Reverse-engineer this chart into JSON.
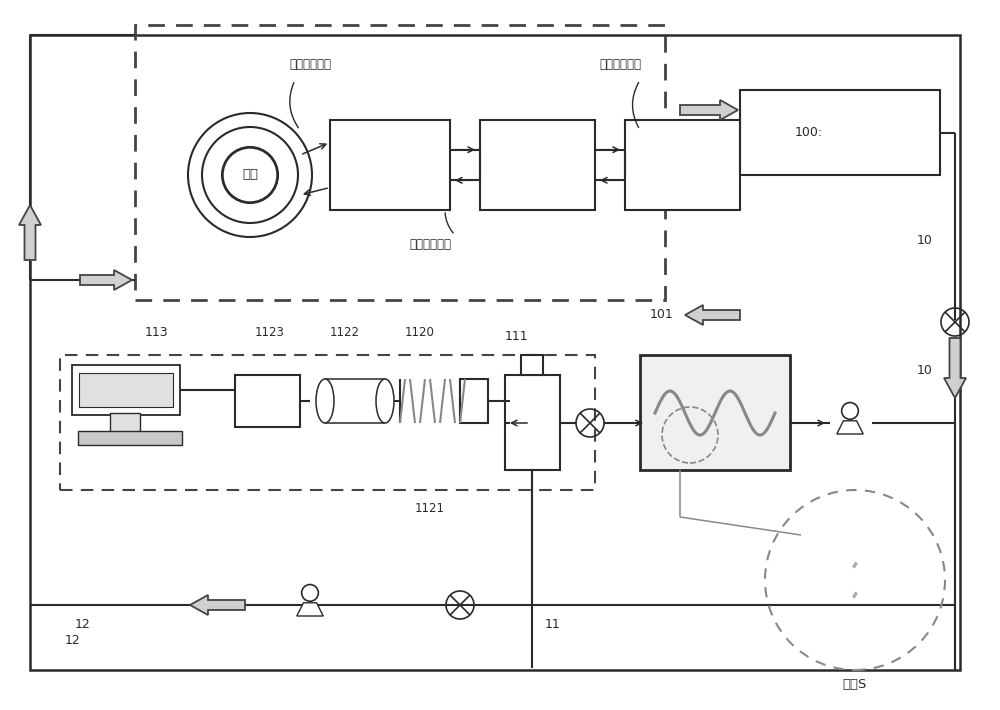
{
  "bg": "#ffffff",
  "lc": "#2a2a2a",
  "lc_gray": "#888888",
  "labels": {
    "yi": "一回路冷却剂",
    "er": "二回路冷却剂",
    "san": "三回路冷却剂",
    "duixin": "堆芯",
    "wanguan": "弯管S",
    "n100": "100:",
    "n10": "10",
    "n11": "11",
    "n12": "12",
    "n101": "101",
    "n111": "111",
    "n113": "113",
    "n1120": "1120",
    "n1121": "1121",
    "n1122": "1122",
    "n1123": "1123"
  },
  "figsize": [
    10.0,
    7.1
  ],
  "dpi": 100
}
